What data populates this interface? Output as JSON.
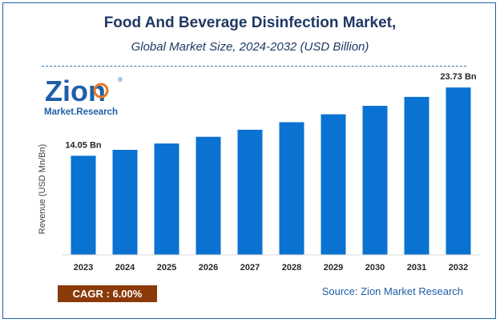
{
  "header": {
    "title": "Food And Beverage Disinfection Market,",
    "subtitle": "Global Market Size, 2024-2032 (USD Billion)"
  },
  "logo": {
    "word": "Zion",
    "tagline": "Market.Research",
    "registered": "®"
  },
  "chart_data": {
    "type": "bar",
    "title": "Food And Beverage Disinfection Market,",
    "subtitle": "Global Market Size, 2024-2032 (USD Billion)",
    "xlabel": "",
    "ylabel": "Revenue (USD Mn/Bn)",
    "categories": [
      "2023",
      "2024",
      "2025",
      "2026",
      "2027",
      "2028",
      "2029",
      "2030",
      "2031",
      "2032"
    ],
    "values": [
      14.05,
      14.89,
      15.79,
      16.74,
      17.74,
      18.81,
      19.93,
      21.13,
      22.4,
      23.73
    ],
    "ylim": [
      0,
      25
    ],
    "bar_color": "#0a72d1",
    "grid": false,
    "value_labels": [
      {
        "index": 0,
        "text": "14.05 Bn"
      },
      {
        "index": 9,
        "text": "23.73 Bn"
      }
    ]
  },
  "footer": {
    "cagr_label": "CAGR :  6.00%",
    "source": "Source: Zion Market Research"
  },
  "colors": {
    "title": "#1f3864",
    "border": "#1f5fa8",
    "bar": "#0a72d1",
    "cagr_bg": "#8b3a0a",
    "logo_blue": "#1f5fa8",
    "logo_orange": "#e87722"
  }
}
